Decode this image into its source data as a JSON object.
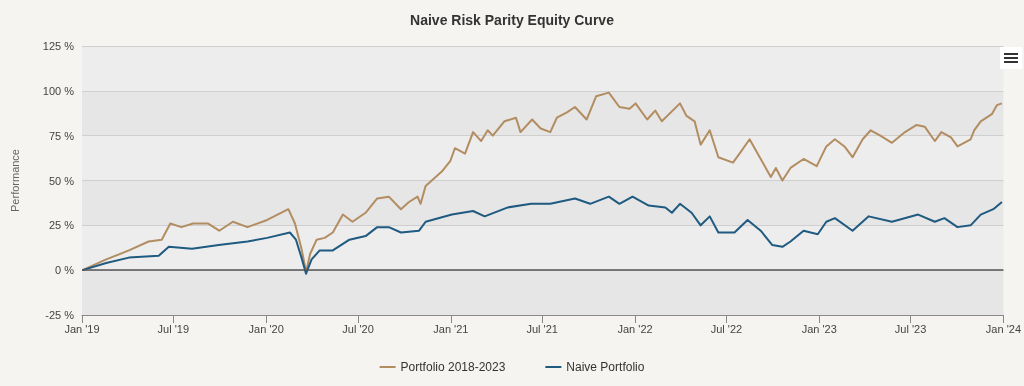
{
  "chart_data": {
    "type": "line",
    "title": "Naive Risk Parity Equity Curve",
    "ylabel": "Performance",
    "xlim": [
      "2019-01",
      "2024-01"
    ],
    "xticks": [
      {
        "value": "2019-01",
        "label": "Jan '19"
      },
      {
        "value": "2019-07",
        "label": "Jul '19"
      },
      {
        "value": "2020-01",
        "label": "Jan '20"
      },
      {
        "value": "2020-07",
        "label": "Jul '20"
      },
      {
        "value": "2021-01",
        "label": "Jan '21"
      },
      {
        "value": "2021-07",
        "label": "Jul '21"
      },
      {
        "value": "2022-01",
        "label": "Jan '22"
      },
      {
        "value": "2022-07",
        "label": "Jul '22"
      },
      {
        "value": "2023-01",
        "label": "Jan '23"
      },
      {
        "value": "2023-07",
        "label": "Jul '23"
      },
      {
        "value": "2024-01",
        "label": "Jan '24"
      }
    ],
    "ylim": [
      -25,
      125
    ],
    "yticks": [
      {
        "value": -25,
        "label": "-25 %"
      },
      {
        "value": 0,
        "label": "0 %"
      },
      {
        "value": 25,
        "label": "25 %"
      },
      {
        "value": 50,
        "label": "50 %"
      },
      {
        "value": 75,
        "label": "75 %"
      },
      {
        "value": 100,
        "label": "100 %"
      },
      {
        "value": 125,
        "label": "125 %"
      }
    ],
    "grid": "y",
    "legend": "bottom",
    "marker": "none",
    "line_style": "solid",
    "ref_lines": [
      {
        "axis": "y",
        "value": 0,
        "color": "#555555"
      }
    ],
    "series": [
      {
        "name": "Portfolio 2018-2023",
        "color": "#b38d62",
        "x": [
          "2019-01-02",
          "2019-02-18",
          "2019-04-04",
          "2019-05-13",
          "2019-06-08",
          "2019-06-25",
          "2019-07-17",
          "2019-08-09",
          "2019-09-08",
          "2019-09-30",
          "2019-10-27",
          "2019-11-25",
          "2020-01-03",
          "2020-02-14",
          "2020-02-27",
          "2020-03-11",
          "2020-03-20",
          "2020-03-28",
          "2020-04-10",
          "2020-04-26",
          "2020-05-12",
          "2020-06-01",
          "2020-06-20",
          "2020-07-16",
          "2020-08-08",
          "2020-08-31",
          "2020-09-24",
          "2020-10-10",
          "2020-10-27",
          "2020-11-02",
          "2020-11-12",
          "2020-11-28",
          "2020-12-14",
          "2020-12-31",
          "2021-01-09",
          "2021-01-29",
          "2021-02-14",
          "2021-03-02",
          "2021-03-15",
          "2021-03-25",
          "2021-04-17",
          "2021-05-10",
          "2021-05-19",
          "2021-06-11",
          "2021-06-28",
          "2021-07-17",
          "2021-07-30",
          "2021-08-19",
          "2021-09-04",
          "2021-09-27",
          "2021-10-16",
          "2021-11-10",
          "2021-12-01",
          "2021-12-21",
          "2022-01-02",
          "2022-01-25",
          "2022-02-10",
          "2022-02-23",
          "2022-03-31",
          "2022-04-13",
          "2022-04-29",
          "2022-05-11",
          "2022-05-29",
          "2022-06-15",
          "2022-07-14",
          "2022-07-27",
          "2022-08-16",
          "2022-09-07",
          "2022-09-27",
          "2022-10-07",
          "2022-10-20",
          "2022-11-05",
          "2022-12-01",
          "2022-12-27",
          "2023-01-15",
          "2023-02-01",
          "2023-02-20",
          "2023-03-08",
          "2023-03-28",
          "2023-04-13",
          "2023-05-02",
          "2023-05-25",
          "2023-06-20",
          "2023-07-13",
          "2023-07-29",
          "2023-08-18",
          "2023-08-31",
          "2023-09-19",
          "2023-10-02",
          "2023-10-28",
          "2023-11-04",
          "2023-11-17",
          "2023-12-09",
          "2023-12-19",
          "2023-12-29"
        ],
        "values": [
          0,
          6,
          11,
          16,
          17,
          26,
          24,
          26,
          26,
          22,
          27,
          24,
          28,
          34,
          26,
          12,
          -1,
          9,
          17,
          18,
          21,
          31,
          27,
          32,
          40,
          41,
          34,
          38,
          41,
          37,
          47,
          51,
          55,
          61,
          68,
          65,
          77,
          72,
          78,
          75,
          83,
          85,
          77,
          84,
          79,
          77,
          85,
          88,
          91,
          84,
          97,
          99,
          91,
          90,
          93,
          84,
          89,
          83,
          93,
          86,
          83,
          70,
          78,
          63,
          60,
          65,
          73,
          62,
          52,
          57,
          50,
          57,
          62,
          58,
          69,
          73,
          69,
          63,
          73,
          78,
          75,
          71,
          77,
          81,
          80,
          72,
          77,
          74,
          69,
          73,
          78,
          83,
          87,
          92,
          93
        ]
      },
      {
        "name": "Naive Portfolio",
        "color": "#1f5a80",
        "x": [
          "2019-01-02",
          "2019-02-18",
          "2019-04-04",
          "2019-06-02",
          "2019-06-22",
          "2019-08-07",
          "2019-09-29",
          "2019-11-25",
          "2020-01-03",
          "2020-02-17",
          "2020-02-29",
          "2020-03-11",
          "2020-03-20",
          "2020-03-31",
          "2020-04-16",
          "2020-05-12",
          "2020-06-14",
          "2020-07-16",
          "2020-08-08",
          "2020-08-31",
          "2020-09-24",
          "2020-10-30",
          "2020-11-12",
          "2021-01-03",
          "2021-02-14",
          "2021-03-09",
          "2021-04-24",
          "2021-06-09",
          "2021-07-17",
          "2021-09-04",
          "2021-10-04",
          "2021-11-10",
          "2021-12-01",
          "2021-12-27",
          "2022-01-28",
          "2022-03-02",
          "2022-03-15",
          "2022-03-31",
          "2022-04-23",
          "2022-05-11",
          "2022-05-29",
          "2022-06-15",
          "2022-07-17",
          "2022-08-12",
          "2022-09-07",
          "2022-09-30",
          "2022-10-20",
          "2022-11-05",
          "2022-12-01",
          "2022-12-29",
          "2023-01-15",
          "2023-02-01",
          "2023-03-08",
          "2023-04-09",
          "2023-05-25",
          "2023-07-16",
          "2023-08-18",
          "2023-09-06",
          "2023-10-02",
          "2023-10-28",
          "2023-11-17",
          "2023-12-12",
          "2023-12-29"
        ],
        "values": [
          0,
          4,
          7,
          8,
          13,
          12,
          14,
          16,
          18,
          21,
          17,
          7,
          -2,
          6,
          11,
          11,
          17,
          19,
          24,
          24,
          21,
          22,
          27,
          31,
          33,
          30,
          35,
          37,
          37,
          40,
          37,
          41,
          37,
          41,
          36,
          35,
          32,
          37,
          32,
          25,
          30,
          21,
          21,
          28,
          22,
          14,
          13,
          16,
          22,
          20,
          27,
          29,
          22,
          30,
          27,
          31,
          27,
          29,
          24,
          25,
          31,
          34,
          38
        ]
      }
    ]
  }
}
